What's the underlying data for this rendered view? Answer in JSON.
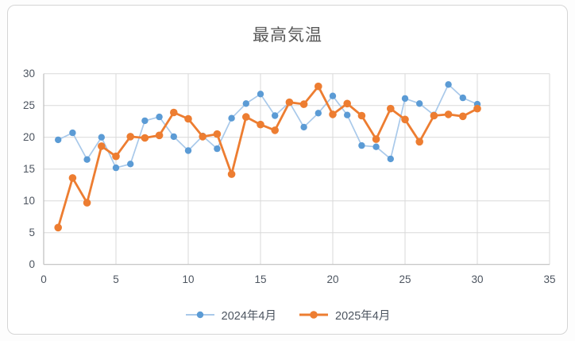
{
  "chart_data": {
    "type": "line",
    "title": "最高気温",
    "categories": [
      1,
      2,
      3,
      4,
      5,
      6,
      7,
      8,
      9,
      10,
      11,
      12,
      13,
      14,
      15,
      16,
      17,
      18,
      19,
      20,
      21,
      22,
      23,
      24,
      25,
      26,
      27,
      28,
      29,
      30
    ],
    "series": [
      {
        "name": "2024年4月",
        "line_color": "#a9c9ea",
        "marker_color": "#5b9bd5",
        "line_width": 1.7,
        "marker_radius": 4.2,
        "values": [
          19.6,
          20.7,
          16.5,
          20.0,
          15.2,
          15.8,
          22.6,
          23.2,
          20.1,
          17.9,
          20.2,
          18.2,
          23.0,
          25.3,
          26.8,
          23.4,
          25.5,
          21.6,
          23.8,
          26.5,
          23.5,
          18.7,
          18.5,
          16.6,
          26.1,
          25.3,
          23.5,
          28.3,
          26.2,
          25.2
        ]
      },
      {
        "name": "2025年4月",
        "line_color": "#ed7d31",
        "marker_color": "#ed7d31",
        "line_width": 2.8,
        "marker_radius": 4.8,
        "values": [
          5.8,
          13.6,
          9.7,
          18.6,
          17.0,
          20.1,
          19.9,
          20.3,
          23.9,
          22.9,
          20.1,
          20.5,
          14.2,
          23.2,
          22.0,
          21.1,
          25.5,
          25.2,
          28.0,
          23.6,
          25.3,
          23.4,
          19.7,
          24.5,
          22.8,
          19.3,
          23.4,
          23.6,
          23.3,
          24.5
        ]
      }
    ],
    "xlim": [
      0,
      35
    ],
    "ylim": [
      0,
      30
    ],
    "x_ticks": [
      0,
      5,
      10,
      15,
      20,
      25,
      30,
      35
    ],
    "y_ticks": [
      0,
      5,
      10,
      15,
      20,
      25,
      30
    ],
    "grid": true,
    "legend_position": "bottom",
    "colors": {
      "gridline": "#d9d9d9",
      "axis_line": "#bfbfbf",
      "tick_text": "#4d5560",
      "title_text": "#595959",
      "chart_background": "#ffffff",
      "frame_border": "#d5d5d5"
    }
  }
}
